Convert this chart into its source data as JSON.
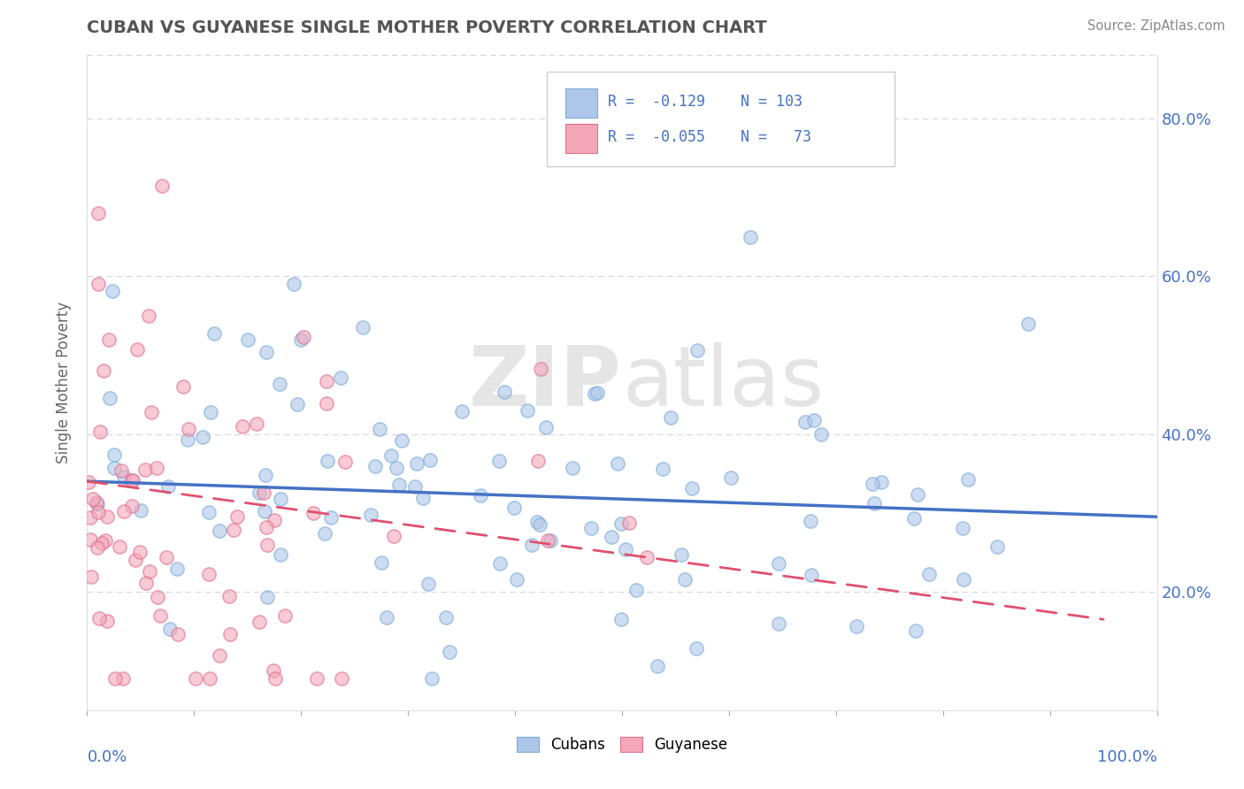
{
  "title": "CUBAN VS GUYANESE SINGLE MOTHER POVERTY CORRELATION CHART",
  "source": "Source: ZipAtlas.com",
  "ylabel": "Single Mother Poverty",
  "ytick_vals": [
    0.2,
    0.4,
    0.6,
    0.8
  ],
  "ytick_labels": [
    "20.0%",
    "40.0%",
    "60.0%",
    "80.0%"
  ],
  "xlim": [
    0.0,
    1.0
  ],
  "ylim": [
    0.05,
    0.88
  ],
  "watermark": "ZIPatlas",
  "background_color": "#ffffff",
  "scatter_alpha": 0.6,
  "scatter_size": 120,
  "cuban_color": "#aec6e8",
  "cuban_edge": "#7aadda",
  "guyanese_color": "#f4a7b9",
  "guyanese_edge": "#e07090",
  "cuban_line_color": "#4472c4",
  "guyanese_line_color": "#e05070",
  "grid_color": "#cccccc",
  "title_color": "#555555",
  "axis_label_color": "#4472c4",
  "legend_text_color": "#4472c4",
  "cuban_trend_x": [
    0.0,
    1.0
  ],
  "cuban_trend_y": [
    0.34,
    0.295
  ],
  "guyanese_trend_x": [
    0.0,
    0.95
  ],
  "guyanese_trend_y": [
    0.34,
    0.165
  ]
}
